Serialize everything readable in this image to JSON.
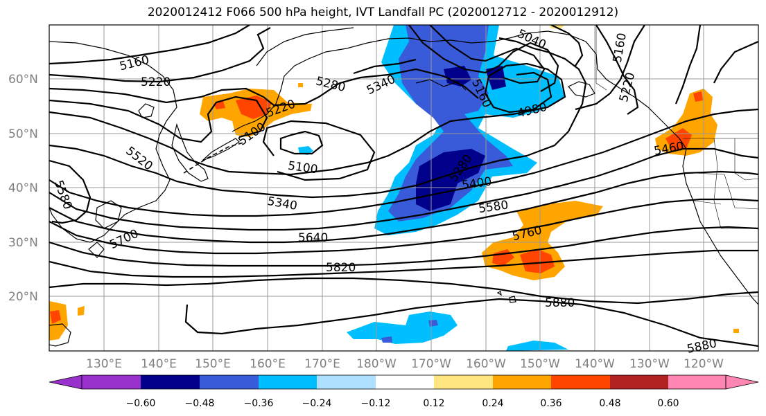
{
  "title": "2020012412 F066 500 hPa height, IVT Landfall PC (2020012712 - 2020012912)",
  "lat_labels": [
    "60°N",
    "50°N",
    "40°N",
    "30°N",
    "20°N"
  ],
  "lon_labels": [
    "130°E",
    "140°E",
    "150°E",
    "160°E",
    "170°E",
    "180°W",
    "170°W",
    "160°W",
    "150°W",
    "140°W",
    "130°W",
    "120°W"
  ],
  "contour_labels": [
    "5160",
    "5220",
    "5280",
    "5340",
    "5040",
    "5160",
    "5220",
    "4980",
    "5160",
    "5100",
    "5520",
    "5580",
    "5340",
    "5280",
    "5400",
    "5580",
    "5700",
    "5640",
    "5760",
    "5820",
    "5880",
    "5880",
    "5460",
    "5220",
    "5100"
  ],
  "colorbar": {
    "tick_labels": [
      "−0.60",
      "−0.48",
      "−0.36",
      "−0.24",
      "−0.12",
      "0.12",
      "0.24",
      "0.36",
      "0.48",
      "0.60"
    ],
    "colors": [
      "#9932CC",
      "#00008B",
      "#3A5BD9",
      "#00BFFF",
      "#B0E0FF",
      "#FFFFFF",
      "#FFE680",
      "#FFA500",
      "#FF4500",
      "#B22222",
      "#FF85B3"
    ]
  }
}
